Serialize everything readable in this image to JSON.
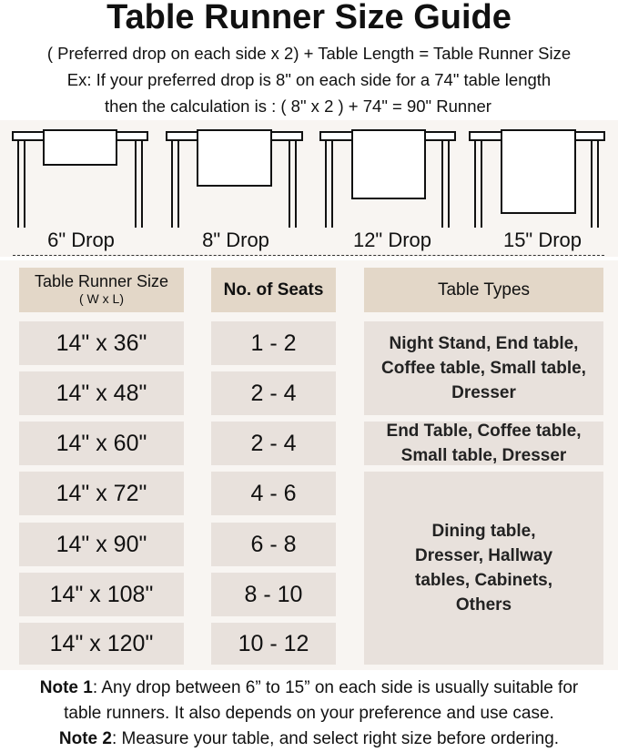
{
  "title": "Table Runner Size Guide",
  "formula": "( Preferred drop on each side x 2) + Table Length = Table Runner Size",
  "example_line1": "Ex: If your preferred drop is 8\" on each side for a 74\" table length",
  "example_line2": "then the calculation is : ( 8\" x 2 ) + 74\" = 90\" Runner",
  "drops": [
    "6\" Drop",
    "8\" Drop",
    "12\" Drop",
    "15\" Drop"
  ],
  "headers": {
    "size": "Table Runner Size",
    "size_sub": "( W x L)",
    "seats": "No. of Seats",
    "types": "Table Types"
  },
  "rows": [
    {
      "size": "14\" x 36\"",
      "seats": "1 - 2"
    },
    {
      "size": "14\" x 48\"",
      "seats": "2 - 4"
    },
    {
      "size": "14\" x 60\"",
      "seats": "2 - 4"
    },
    {
      "size": "14\" x 72\"",
      "seats": "4 - 6"
    },
    {
      "size": "14\" x 90\"",
      "seats": "6 - 8"
    },
    {
      "size": "14\" x 108\"",
      "seats": "8 - 10"
    },
    {
      "size": "14\" x 120\"",
      "seats": "10 - 12"
    }
  ],
  "table_types": [
    "Night Stand, End table, Coffee table, Small table, Dresser",
    "End Table, Coffee table, Small table, Dresser",
    "Dining table, Dresser, Hallway tables, Cabinets, Others"
  ],
  "notes": {
    "note1_label": "Note 1",
    "note1_text": ": Any drop between 6” to 15” on each side is usually suitable for",
    "note1_text2": "table runners. It also depends on your preference and use case.",
    "note2_label": "Note 2",
    "note2_text": ": Measure your table, and select right size before ordering."
  },
  "colors": {
    "panel": "#f8f5f2",
    "header_cell": "#e3d7c8",
    "body_cell": "#e8e1dc"
  }
}
